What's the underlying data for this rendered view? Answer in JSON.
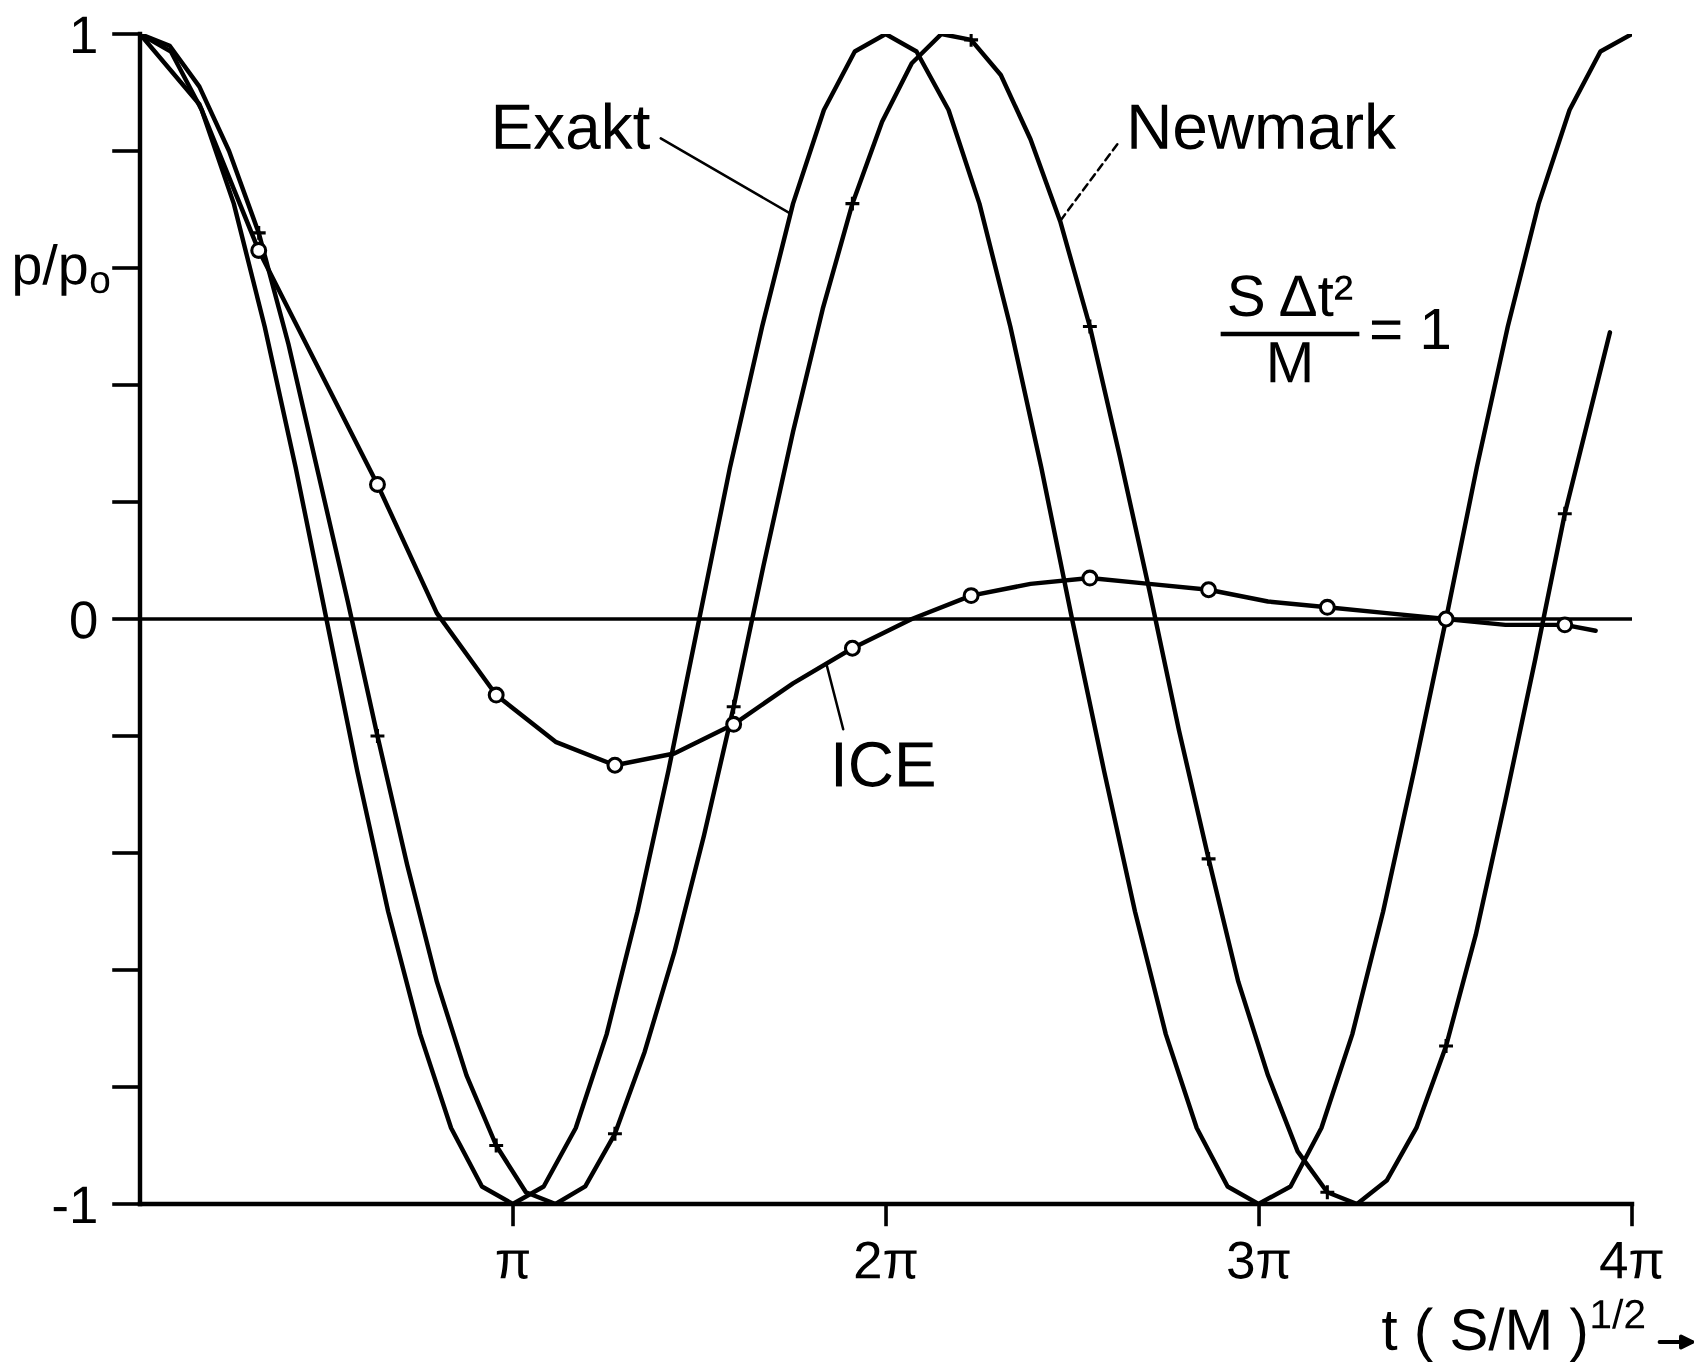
{
  "chart_data": {
    "type": "line",
    "xlabel": "t ( S/M )$^{1/2}$",
    "ylabel": "p/p$_{o}$",
    "xlim": [
      0,
      12.566
    ],
    "ylim": [
      -1,
      1
    ],
    "xticks": [
      {
        "value": 3.1416,
        "label": "π"
      },
      {
        "value": 6.2832,
        "label": "2π"
      },
      {
        "value": 9.4248,
        "label": "3π"
      },
      {
        "value": 12.566,
        "label": "4π"
      }
    ],
    "yticks": [
      -1,
      {
        "value": -0.8,
        "label": null
      },
      {
        "value": -0.6,
        "label": null
      },
      {
        "value": -0.4,
        "label": null
      },
      {
        "value": -0.2,
        "label": null
      },
      0,
      {
        "value": 0.2,
        "label": null
      },
      {
        "value": 0.4,
        "label": null
      },
      {
        "value": 0.6,
        "label": null
      },
      {
        "value": 0.8,
        "label": null
      },
      1
    ],
    "annotations": [
      "S Δt²",
      "M",
      "= 1"
    ],
    "ref_lines": [
      {
        "axis": "y",
        "value": 0,
        "color": "#000000"
      }
    ],
    "series": [
      {
        "name": "Exakt",
        "color": "#000000",
        "x": [
          0,
          0.26,
          0.52,
          0.79,
          1.05,
          1.31,
          1.57,
          1.83,
          2.09,
          2.36,
          2.62,
          2.88,
          3.14,
          3.4,
          3.67,
          3.93,
          4.19,
          4.45,
          4.71,
          4.97,
          5.24,
          5.5,
          5.76,
          6.02,
          6.28,
          6.54,
          6.81,
          7.07,
          7.33,
          7.59,
          7.85,
          8.12,
          8.38,
          8.64,
          8.9,
          9.16,
          9.42,
          9.69,
          9.95,
          10.21,
          10.47,
          10.73,
          11.0,
          11.26,
          11.52,
          11.78,
          12.04,
          12.3,
          12.566
        ],
        "values": [
          1,
          0.97,
          0.87,
          0.71,
          0.5,
          0.26,
          0,
          -0.26,
          -0.5,
          -0.71,
          -0.87,
          -0.97,
          -1,
          -0.97,
          -0.87,
          -0.71,
          -0.5,
          -0.26,
          0,
          0.26,
          0.5,
          0.71,
          0.87,
          0.97,
          1,
          0.97,
          0.87,
          0.71,
          0.5,
          0.26,
          0,
          -0.26,
          -0.5,
          -0.71,
          -0.87,
          -0.97,
          -1,
          -0.97,
          -0.87,
          -0.71,
          -0.5,
          -0.26,
          0,
          0.26,
          0.5,
          0.71,
          0.87,
          0.97,
          1
        ]
      },
      {
        "name": "Newmark",
        "color": "#000000",
        "x": [
          0,
          0.25,
          0.5,
          0.75,
          1,
          1.25,
          1.5,
          1.75,
          2,
          2.25,
          2.5,
          2.75,
          3,
          3.25,
          3.5,
          3.75,
          4,
          4.25,
          4.5,
          4.75,
          5,
          5.25,
          5.5,
          5.75,
          6,
          6.25,
          6.5,
          6.75,
          7,
          7.25,
          7.5,
          7.75,
          8,
          8.25,
          8.5,
          8.75,
          9,
          9.25,
          9.5,
          9.75,
          10,
          10.25,
          10.5,
          10.75,
          11,
          11.25,
          11.5,
          11.75,
          12,
          12.38
        ],
        "values": [
          1,
          0.98,
          0.91,
          0.8,
          0.66,
          0.47,
          0.25,
          0.03,
          -0.2,
          -0.42,
          -0.62,
          -0.78,
          -0.9,
          -0.98,
          -1,
          -0.97,
          -0.88,
          -0.74,
          -0.57,
          -0.37,
          -0.15,
          0.09,
          0.32,
          0.53,
          0.71,
          0.85,
          0.95,
          1,
          0.99,
          0.93,
          0.82,
          0.68,
          0.5,
          0.28,
          0.05,
          -0.19,
          -0.41,
          -0.62,
          -0.78,
          -0.91,
          -0.98,
          -1,
          -0.96,
          -0.87,
          -0.73,
          -0.54,
          -0.31,
          -0.07,
          0.18,
          0.49
        ]
      },
      {
        "type": "scatter",
        "color": "#000000",
        "marker": "cross",
        "x": [
          1,
          2,
          3,
          4,
          5,
          6,
          7,
          8,
          9,
          10,
          11,
          12
        ],
        "values": [
          0.66,
          -0.2,
          -0.9,
          -0.88,
          -0.15,
          0.71,
          0.99,
          0.5,
          -0.41,
          -0.98,
          -0.73,
          0.18
        ]
      },
      {
        "name": "ICE",
        "color": "#000000",
        "x": [
          0,
          0.5,
          1,
          1.5,
          2,
          2.5,
          3,
          3.5,
          4,
          4.5,
          5,
          5.5,
          6,
          6.5,
          7,
          7.5,
          8,
          8.5,
          9,
          9.5,
          10,
          10.5,
          11,
          11.5,
          12,
          12.26
        ],
        "values": [
          1,
          0.88,
          0.63,
          0.43,
          0.23,
          0.01,
          -0.13,
          -0.21,
          -0.25,
          -0.23,
          -0.18,
          -0.11,
          -0.05,
          0,
          0.04,
          0.06,
          0.07,
          0.06,
          0.05,
          0.03,
          0.02,
          0.01,
          0,
          -0.01,
          -0.01,
          -0.02
        ]
      },
      {
        "type": "scatter",
        "color": "#000000",
        "marker": "circle",
        "x": [
          1,
          2,
          3,
          4,
          5,
          6,
          7,
          8,
          9,
          10,
          11,
          12
        ],
        "values": [
          0.63,
          0.23,
          -0.13,
          -0.25,
          -0.18,
          -0.05,
          0.04,
          0.07,
          0.05,
          0.02,
          0,
          -0.01
        ]
      }
    ]
  }
}
